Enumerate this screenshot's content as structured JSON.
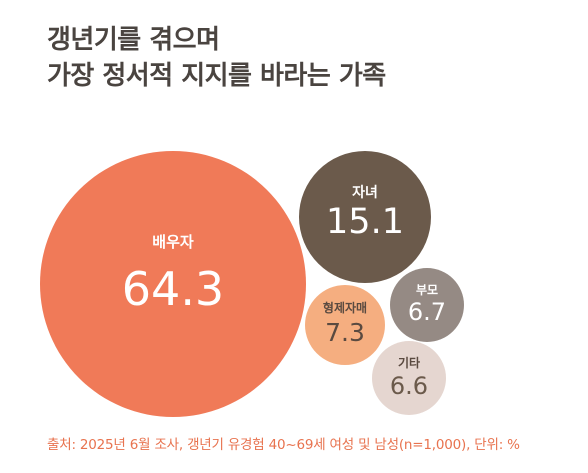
{
  "title": {
    "line1": "갱년기를 겪으며",
    "line2": "가장 정서적 지지를 바라는 가족"
  },
  "source": "출처: 2025년 6월 조사, 갱년기 유경험 40~69세 여성 및 남성(n=1,000), 단위: %",
  "chart_data": {
    "type": "bubble",
    "unit": "%",
    "categories": [
      "배우자",
      "자녀",
      "부모",
      "형제자매",
      "기타"
    ],
    "values": [
      64.3,
      15.1,
      6.7,
      7.3,
      6.6
    ],
    "colors": [
      "#f07a58",
      "#6b5a4b",
      "#958a84",
      "#f5ae80",
      "#e5d6d0"
    ],
    "label_colors": [
      "#ffffff",
      "#ffffff",
      "#ffffff",
      "#5a4a40",
      "#5a4a40"
    ],
    "value_colors": [
      "#ffffff",
      "#ffffff",
      "#ffffff",
      "#5a4a40",
      "#6b5a4b"
    ]
  }
}
